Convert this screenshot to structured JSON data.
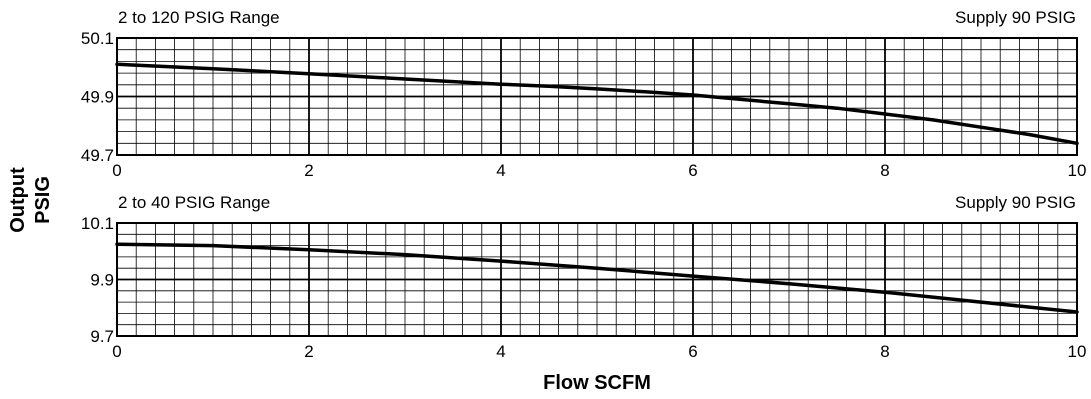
{
  "y_axis_title": [
    "Output",
    "PSIG"
  ],
  "x_axis_title": "Flow SCFM",
  "chart_data": [
    {
      "type": "line",
      "title": "2 to 120 PSIG Range",
      "subtitle": "Supply 90 PSIG",
      "xlabel": "Flow SCFM",
      "ylabel": "Output PSIG",
      "xlim": [
        0,
        10
      ],
      "ylim": [
        49.7,
        50.1
      ],
      "x_ticks": [
        "0",
        "2",
        "4",
        "6",
        "8",
        "10"
      ],
      "y_ticks": [
        "49.7",
        "49.9",
        "50.1"
      ],
      "grid": true,
      "series": [
        {
          "x": [
            0,
            1,
            2,
            3,
            4,
            4.5,
            5,
            5.5,
            6,
            6.5,
            7,
            7.5,
            8,
            8.5,
            9,
            9.5,
            10
          ],
          "y": [
            50.01,
            49.995,
            49.978,
            49.96,
            49.942,
            49.935,
            49.926,
            49.916,
            49.905,
            49.89,
            49.875,
            49.86,
            49.84,
            49.82,
            49.795,
            49.77,
            49.74
          ]
        }
      ]
    },
    {
      "type": "line",
      "title": "2 to 40 PSIG Range",
      "subtitle": "Supply 90 PSIG",
      "xlabel": "Flow SCFM",
      "ylabel": "Output PSIG",
      "xlim": [
        0,
        10
      ],
      "ylim": [
        9.7,
        10.1
      ],
      "x_ticks": [
        "0",
        "2",
        "4",
        "6",
        "8",
        "10"
      ],
      "y_ticks": [
        "9.7",
        "9.9",
        "10.1"
      ],
      "grid": true,
      "series": [
        {
          "x": [
            0,
            1,
            2,
            3,
            4,
            5,
            6,
            7,
            8,
            9,
            10
          ],
          "y": [
            10.025,
            10.02,
            10.005,
            9.988,
            9.965,
            9.94,
            9.912,
            9.885,
            9.855,
            9.82,
            9.785
          ]
        }
      ]
    }
  ]
}
